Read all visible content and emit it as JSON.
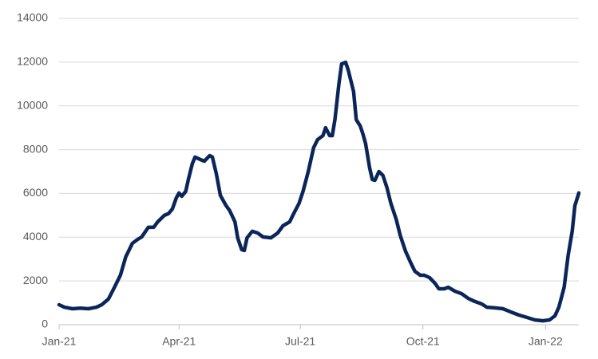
{
  "chart_data": {
    "type": "line",
    "color": "#0b2559",
    "grid": true,
    "ylim": [
      0,
      14000
    ],
    "yticks": [
      0,
      2000,
      4000,
      6000,
      8000,
      10000,
      12000,
      14000
    ],
    "xlim": [
      0,
      390
    ],
    "xticks": [
      {
        "value": 0,
        "label": "Jan-21"
      },
      {
        "value": 90,
        "label": "Apr-21"
      },
      {
        "value": 181,
        "label": "Jul-21"
      },
      {
        "value": 273,
        "label": "Oct-21"
      },
      {
        "value": 365,
        "label": "Jan-22"
      }
    ],
    "x": [
      0,
      4,
      10,
      16,
      22,
      28,
      32,
      37,
      41,
      46,
      50,
      55,
      59,
      62,
      67,
      71,
      74,
      79,
      82,
      85,
      88,
      90,
      92,
      95,
      97,
      100,
      102,
      106,
      109,
      113,
      115,
      118,
      121,
      125,
      128,
      132,
      134,
      137,
      139,
      141,
      145,
      149,
      153,
      159,
      164,
      168,
      173,
      176,
      180,
      183,
      187,
      191,
      194,
      198,
      200,
      203,
      205,
      207,
      210,
      212,
      215,
      217,
      221,
      223,
      226,
      228,
      230,
      233,
      235,
      237,
      240,
      243,
      246,
      249,
      253,
      256,
      260,
      264,
      267,
      271,
      274,
      278,
      282,
      285,
      289,
      292,
      297,
      302,
      307,
      312,
      317,
      321,
      327,
      333,
      339,
      345,
      351,
      357,
      363,
      368,
      372,
      375,
      379,
      382,
      385,
      387,
      390
    ],
    "values": [
      910,
      800,
      730,
      760,
      730,
      800,
      910,
      1170,
      1640,
      2260,
      3100,
      3720,
      3900,
      4010,
      4450,
      4450,
      4700,
      5000,
      5070,
      5290,
      5800,
      6020,
      5870,
      6090,
      6630,
      7360,
      7660,
      7550,
      7470,
      7730,
      7660,
      6890,
      5910,
      5470,
      5210,
      4700,
      3970,
      3430,
      3390,
      3970,
      4270,
      4190,
      4010,
      3970,
      4190,
      4520,
      4700,
      5070,
      5540,
      6090,
      7000,
      8090,
      8460,
      8640,
      9000,
      8640,
      8640,
      9370,
      11010,
      11920,
      11990,
      11630,
      10650,
      9370,
      9080,
      8710,
      8280,
      7180,
      6630,
      6600,
      7000,
      6820,
      6270,
      5540,
      4810,
      4080,
      3350,
      2810,
      2440,
      2260,
      2260,
      2150,
      1900,
      1640,
      1640,
      1710,
      1530,
      1420,
      1200,
      1060,
      950,
      800,
      770,
      730,
      580,
      440,
      330,
      220,
      180,
      220,
      400,
      800,
      1710,
      3170,
      4270,
      5430,
      6020
    ]
  }
}
